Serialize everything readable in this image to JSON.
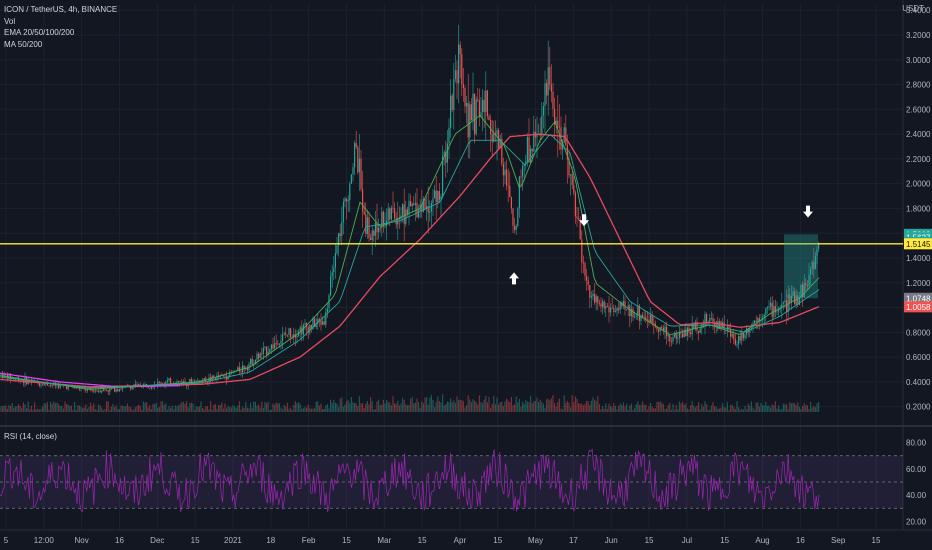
{
  "header": {
    "symbol_line": "ICON / TetherUS, 4h, BINANCE",
    "indicators": [
      "Vol",
      "EMA 20/50/100/200",
      "MA 50/200"
    ],
    "currency": "USDT"
  },
  "rsi": {
    "label": "RSI (14, close)",
    "levels": [
      70,
      50,
      30
    ],
    "ticks": [
      "80.00",
      "60.00",
      "40.00",
      "20.00"
    ]
  },
  "colors": {
    "background": "#131722",
    "up": "#26a69a",
    "down": "#ef5350",
    "ema20": "#4caf50",
    "ema50": "#26a69a",
    "ma200": "#e84a5f",
    "ma50_pink": "#e040fb",
    "resistance": "#ffeb3b",
    "rsi": "#9c27b0",
    "box": "#26a69a"
  },
  "price_tags": [
    {
      "label": "1.5909",
      "value": 1.5909,
      "color": "#26a69a"
    },
    {
      "label": "1.5637",
      "value": 1.5637,
      "color": "#26a69a"
    },
    {
      "label": "01:20:53",
      "value": 1.525,
      "color": "#26a69a"
    },
    {
      "label": "1.5145",
      "value": 1.5145,
      "color": "#ffeb3b"
    },
    {
      "label": "1.0748",
      "value": 1.0748,
      "color": "#787b86"
    },
    {
      "label": "1.0058",
      "value": 1.0058,
      "color": "#ef5350"
    }
  ],
  "chart_data": {
    "type": "candlestick",
    "title": "ICON / TetherUS, 4h, BINANCE",
    "y_ticks": [
      "3.4000",
      "3.2000",
      "3.0000",
      "2.8000",
      "2.6000",
      "2.4000",
      "2.2000",
      "2.0000",
      "1.8000",
      "1.6000",
      "1.4000",
      "1.2000",
      "1.0000",
      "0.8000",
      "0.6000",
      "0.4000",
      "0.2000"
    ],
    "ylim": [
      0.06,
      3.45
    ],
    "x_ticks": [
      "5",
      "12:00",
      "Nov",
      "16",
      "Dec",
      "15",
      "2021",
      "18",
      "Feb",
      "15",
      "Mar",
      "15",
      "Apr",
      "15",
      "May",
      "17",
      "Jun",
      "15",
      "Jul",
      "15",
      "Aug",
      "16",
      "Sep",
      "15"
    ],
    "resistance_level": 1.5145,
    "price_path": [
      [
        0,
        0.46
      ],
      [
        10,
        0.44
      ],
      [
        30,
        0.4
      ],
      [
        50,
        0.38
      ],
      [
        70,
        0.36
      ],
      [
        90,
        0.33
      ],
      [
        110,
        0.34
      ],
      [
        130,
        0.36
      ],
      [
        150,
        0.38
      ],
      [
        170,
        0.4
      ],
      [
        190,
        0.4
      ],
      [
        210,
        0.42
      ],
      [
        230,
        0.46
      ],
      [
        250,
        0.55
      ],
      [
        270,
        0.68
      ],
      [
        290,
        0.8
      ],
      [
        310,
        0.85
      ],
      [
        325,
        0.9
      ],
      [
        335,
        1.4
      ],
      [
        345,
        1.8
      ],
      [
        355,
        2.3
      ],
      [
        362,
        1.9
      ],
      [
        370,
        1.55
      ],
      [
        380,
        1.7
      ],
      [
        395,
        1.75
      ],
      [
        410,
        1.8
      ],
      [
        425,
        1.85
      ],
      [
        440,
        1.9
      ],
      [
        450,
        2.6
      ],
      [
        458,
        3.1
      ],
      [
        462,
        2.7
      ],
      [
        470,
        2.55
      ],
      [
        485,
        2.6
      ],
      [
        500,
        2.3
      ],
      [
        510,
        1.8
      ],
      [
        515,
        1.58
      ],
      [
        520,
        2.1
      ],
      [
        530,
        2.3
      ],
      [
        540,
        2.5
      ],
      [
        550,
        2.8
      ],
      [
        560,
        2.4
      ],
      [
        570,
        2.1
      ],
      [
        578,
        1.7
      ],
      [
        585,
        1.2
      ],
      [
        595,
        1.05
      ],
      [
        605,
        1.0
      ],
      [
        620,
        0.98
      ],
      [
        640,
        0.95
      ],
      [
        655,
        0.88
      ],
      [
        670,
        0.75
      ],
      [
        690,
        0.82
      ],
      [
        710,
        0.9
      ],
      [
        725,
        0.85
      ],
      [
        735,
        0.72
      ],
      [
        750,
        0.85
      ],
      [
        765,
        0.98
      ],
      [
        780,
        1.0
      ],
      [
        795,
        1.08
      ],
      [
        808,
        1.2
      ],
      [
        815,
        1.4
      ],
      [
        820,
        1.56
      ]
    ],
    "ema_paths": [
      {
        "name": "EMA 20",
        "color": "#4caf50",
        "points": [
          [
            0,
            0.45
          ],
          [
            90,
            0.34
          ],
          [
            200,
            0.4
          ],
          [
            250,
            0.52
          ],
          [
            300,
            0.8
          ],
          [
            335,
            1.1
          ],
          [
            360,
            1.85
          ],
          [
            380,
            1.65
          ],
          [
            420,
            1.8
          ],
          [
            455,
            2.4
          ],
          [
            480,
            2.55
          ],
          [
            505,
            2.3
          ],
          [
            520,
            1.95
          ],
          [
            540,
            2.35
          ],
          [
            555,
            2.5
          ],
          [
            575,
            2.05
          ],
          [
            595,
            1.2
          ],
          [
            630,
            0.98
          ],
          [
            670,
            0.78
          ],
          [
            710,
            0.86
          ],
          [
            740,
            0.78
          ],
          [
            770,
            0.95
          ],
          [
            800,
            1.08
          ],
          [
            820,
            1.25
          ]
        ]
      },
      {
        "name": "EMA 50",
        "color": "#26a69a",
        "points": [
          [
            0,
            0.44
          ],
          [
            90,
            0.35
          ],
          [
            200,
            0.39
          ],
          [
            250,
            0.48
          ],
          [
            300,
            0.74
          ],
          [
            340,
            1.05
          ],
          [
            365,
            1.65
          ],
          [
            400,
            1.7
          ],
          [
            440,
            1.85
          ],
          [
            470,
            2.35
          ],
          [
            500,
            2.35
          ],
          [
            525,
            2.15
          ],
          [
            550,
            2.4
          ],
          [
            570,
            2.25
          ],
          [
            595,
            1.45
          ],
          [
            630,
            1.05
          ],
          [
            670,
            0.85
          ],
          [
            710,
            0.86
          ],
          [
            745,
            0.8
          ],
          [
            780,
            0.93
          ],
          [
            820,
            1.15
          ]
        ]
      }
    ],
    "ma_paths": [
      {
        "name": "MA 200",
        "color": "#e84a5f",
        "points": [
          [
            0,
            0.42
          ],
          [
            90,
            0.36
          ],
          [
            200,
            0.38
          ],
          [
            250,
            0.42
          ],
          [
            300,
            0.6
          ],
          [
            340,
            0.85
          ],
          [
            380,
            1.25
          ],
          [
            420,
            1.55
          ],
          [
            460,
            1.9
          ],
          [
            490,
            2.2
          ],
          [
            510,
            2.38
          ],
          [
            540,
            2.4
          ],
          [
            565,
            2.38
          ],
          [
            590,
            2.05
          ],
          [
            620,
            1.55
          ],
          [
            650,
            1.05
          ],
          [
            680,
            0.86
          ],
          [
            710,
            0.88
          ],
          [
            740,
            0.84
          ],
          [
            780,
            0.88
          ],
          [
            820,
            1.01
          ]
        ]
      },
      {
        "name": "MA 50",
        "color": "#e040fb",
        "points": [
          [
            0,
            0.47
          ],
          [
            60,
            0.4
          ],
          [
            120,
            0.36
          ],
          [
            180,
            0.37
          ]
        ]
      }
    ],
    "annotations": [
      {
        "type": "arrow-up",
        "x": 514,
        "value": 1.26
      },
      {
        "type": "arrow-down",
        "x": 584,
        "value": 1.68
      },
      {
        "type": "arrow-down",
        "x": 808,
        "value": 1.75
      },
      {
        "type": "box",
        "x0": 784,
        "x1": 818,
        "top": 1.5909,
        "bottom": 1.0748
      }
    ],
    "xlabel": "",
    "ylabel": "",
    "grid": true,
    "legend_placement": "top-left"
  }
}
